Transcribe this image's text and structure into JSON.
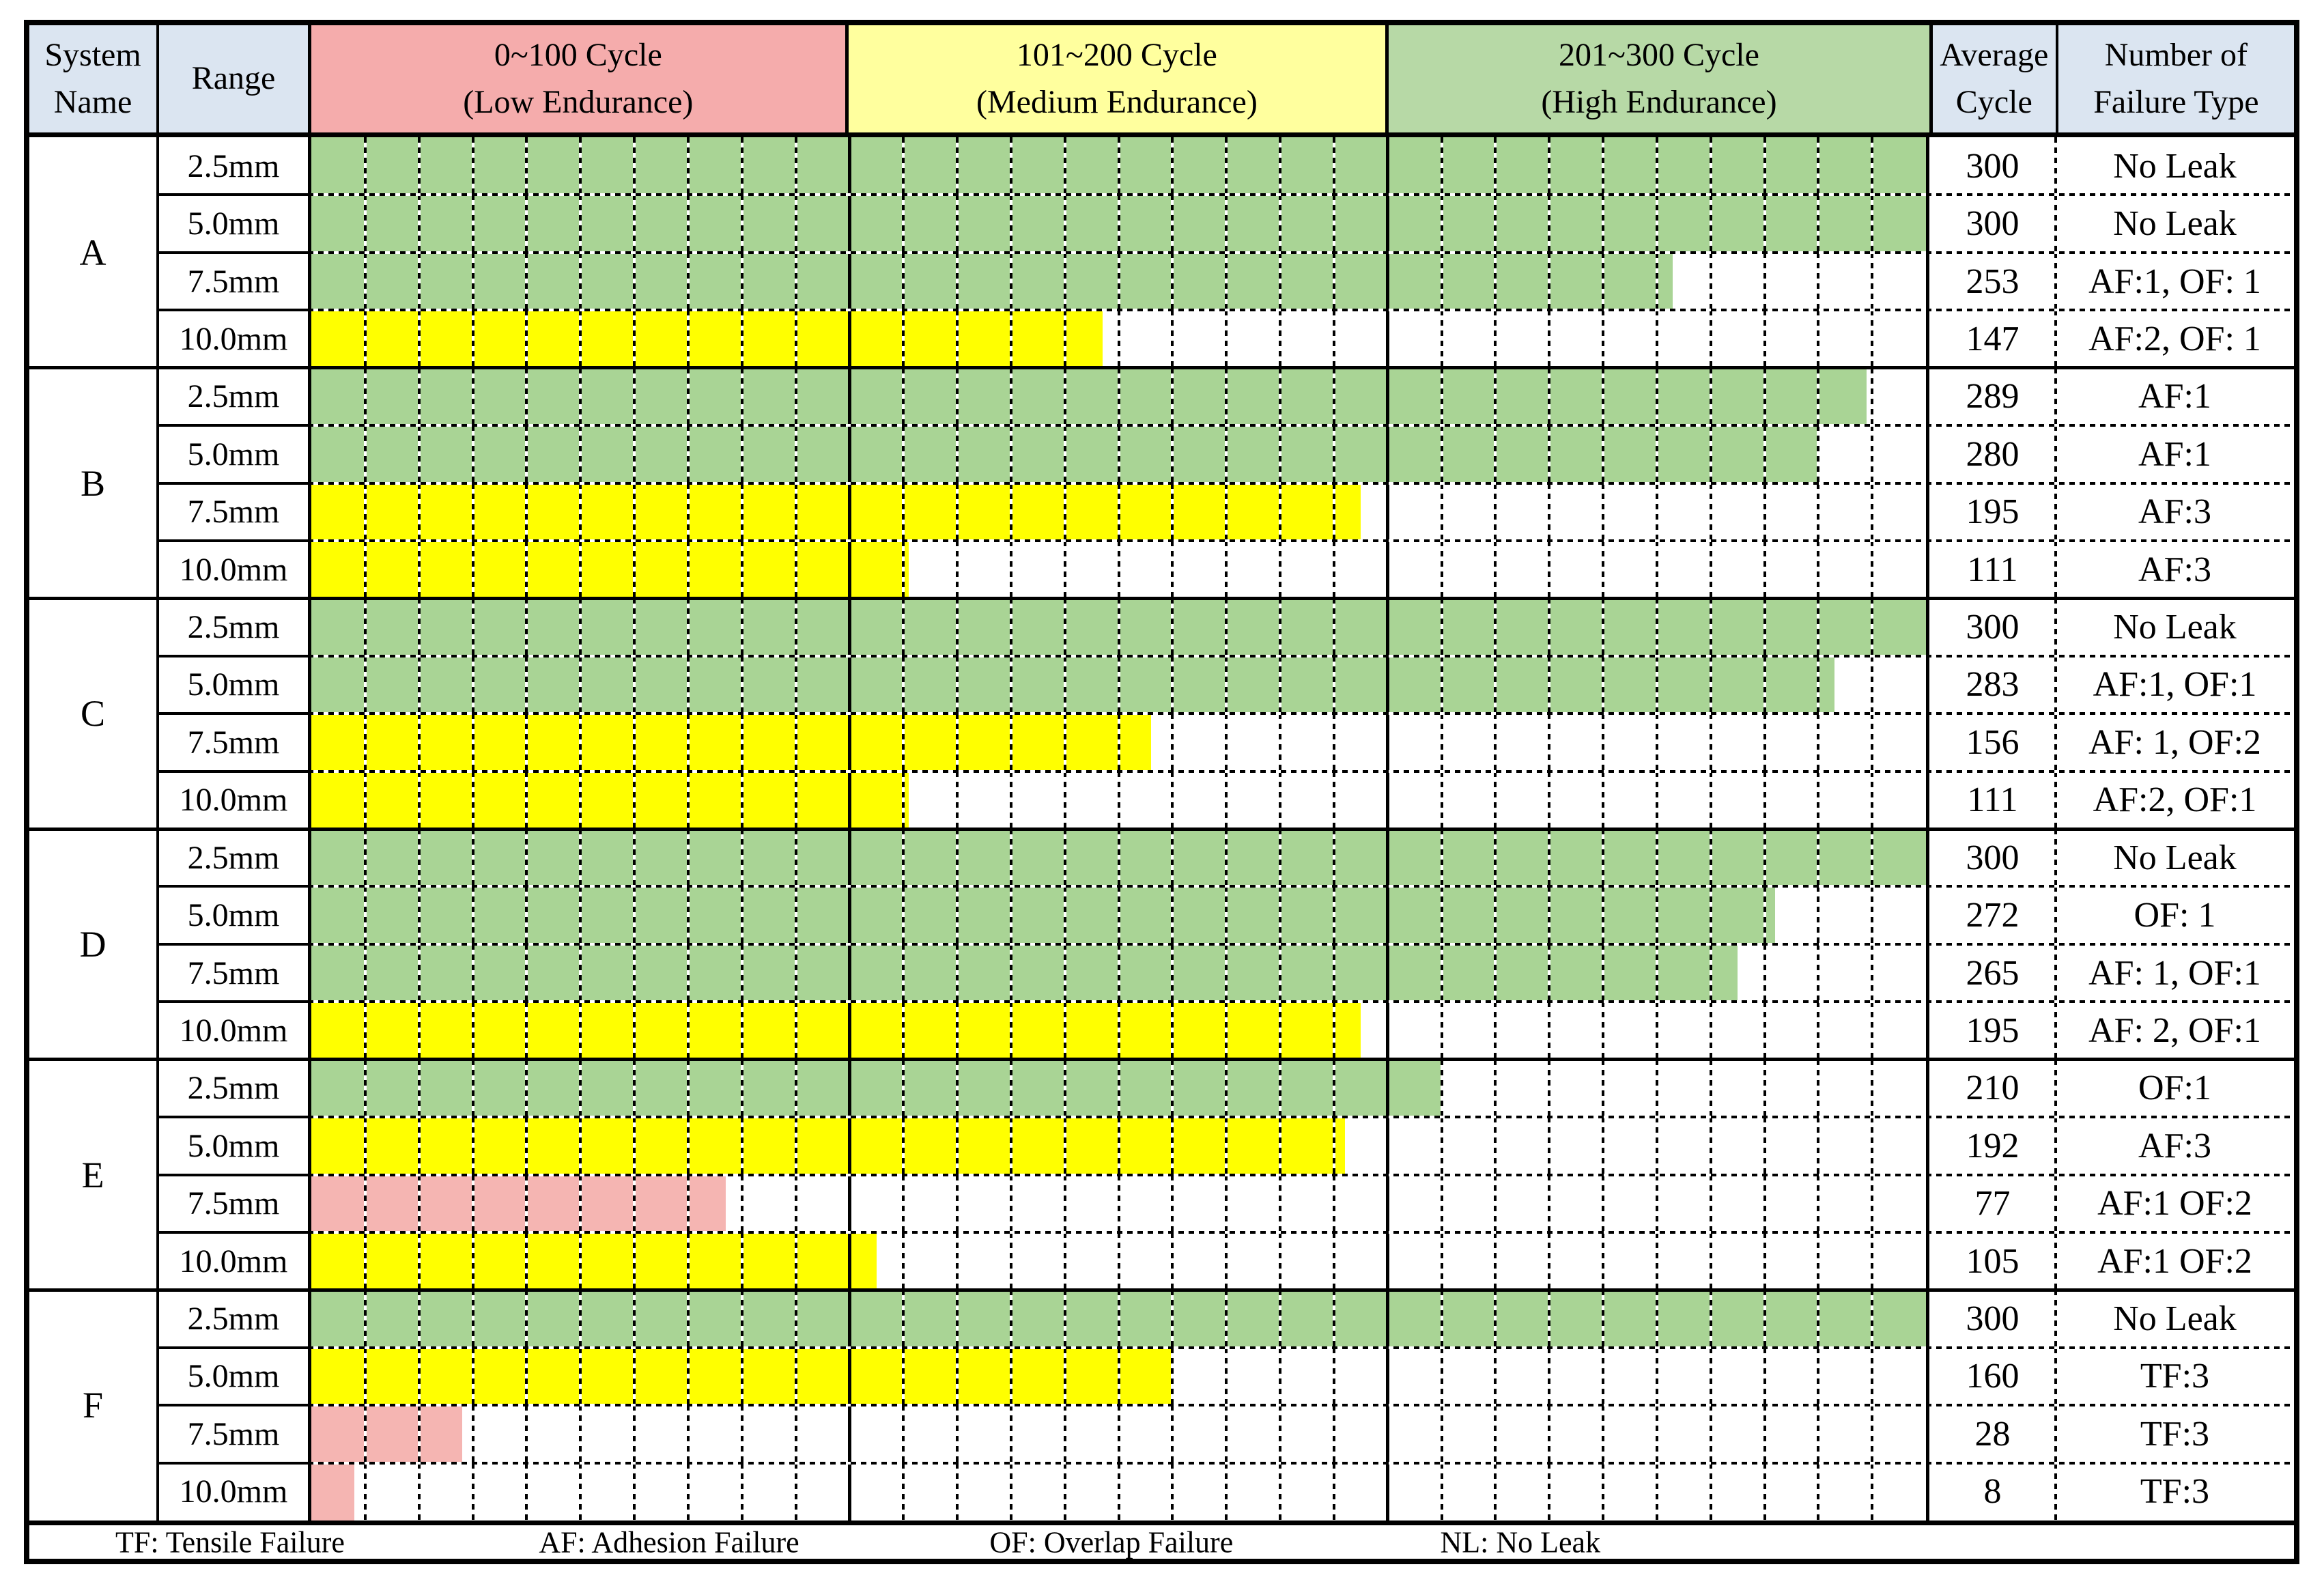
{
  "header": {
    "system_name": [
      "System",
      "Name"
    ],
    "range": "Range",
    "sections": [
      {
        "lines": [
          "0~100 Cycle",
          "(Low Endurance)"
        ]
      },
      {
        "lines": [
          "101~200 Cycle",
          "(Medium Endurance)"
        ]
      },
      {
        "lines": [
          "201~300 Cycle",
          "(High Endurance)"
        ]
      }
    ],
    "average_cycle": [
      "Average",
      "Cycle"
    ],
    "failure_type": [
      "Number of",
      "Failure Type"
    ]
  },
  "colors": {
    "header_bg": "#dbe5f1",
    "section_low": "#f5acac",
    "section_medium": "#ffff9e",
    "section_high": "#b7d9a6",
    "bars": {
      "low": "#f5b5b2",
      "medium": "#ffff00",
      "high": "#a9d495"
    },
    "border": "#000000"
  },
  "chart_data": {
    "type": "bar",
    "orientation": "horizontal",
    "xlim": [
      0,
      300
    ],
    "grid_step": 10,
    "section_boundaries": [
      100,
      200
    ],
    "thresholds": {
      "low_max": 100,
      "medium_max": 200
    },
    "groups": [
      {
        "system": "A",
        "bars": [
          {
            "range": "2.5mm",
            "value": 300,
            "failure": "No Leak"
          },
          {
            "range": "5.0mm",
            "value": 300,
            "failure": "No Leak"
          },
          {
            "range": "7.5mm",
            "value": 253,
            "failure": "AF:1, OF: 1"
          },
          {
            "range": "10.0mm",
            "value": 147,
            "failure": "AF:2, OF: 1"
          }
        ]
      },
      {
        "system": "B",
        "bars": [
          {
            "range": "2.5mm",
            "value": 289,
            "failure": "AF:1"
          },
          {
            "range": "5.0mm",
            "value": 280,
            "failure": "AF:1"
          },
          {
            "range": "7.5mm",
            "value": 195,
            "failure": "AF:3"
          },
          {
            "range": "10.0mm",
            "value": 111,
            "failure": "AF:3"
          }
        ]
      },
      {
        "system": "C",
        "bars": [
          {
            "range": "2.5mm",
            "value": 300,
            "failure": "No Leak"
          },
          {
            "range": "5.0mm",
            "value": 283,
            "failure": "AF:1, OF:1"
          },
          {
            "range": "7.5mm",
            "value": 156,
            "failure": "AF: 1, OF:2"
          },
          {
            "range": "10.0mm",
            "value": 111,
            "failure": "AF:2, OF:1"
          }
        ]
      },
      {
        "system": "D",
        "bars": [
          {
            "range": "2.5mm",
            "value": 300,
            "failure": "No Leak"
          },
          {
            "range": "5.0mm",
            "value": 272,
            "failure": "OF: 1"
          },
          {
            "range": "7.5mm",
            "value": 265,
            "failure": "AF: 1, OF:1"
          },
          {
            "range": "10.0mm",
            "value": 195,
            "failure": "AF: 2, OF:1"
          }
        ]
      },
      {
        "system": "E",
        "bars": [
          {
            "range": "2.5mm",
            "value": 210,
            "failure": "OF:1"
          },
          {
            "range": "5.0mm",
            "value": 192,
            "failure": "AF:3"
          },
          {
            "range": "7.5mm",
            "value": 77,
            "failure": "AF:1 OF:2"
          },
          {
            "range": "10.0mm",
            "value": 105,
            "failure": "AF:1 OF:2"
          }
        ]
      },
      {
        "system": "F",
        "bars": [
          {
            "range": "2.5mm",
            "value": 300,
            "failure": "No Leak"
          },
          {
            "range": "5.0mm",
            "value": 160,
            "failure": "TF:3"
          },
          {
            "range": "7.5mm",
            "value": 28,
            "failure": "TF:3"
          },
          {
            "range": "10.0mm",
            "value": 8,
            "failure": "TF:3"
          }
        ]
      }
    ]
  },
  "legend": [
    "TF: Tensile Failure",
    "AF: Adhesion Failure",
    "OF: Overlap Failure",
    "NL: No Leak"
  ]
}
